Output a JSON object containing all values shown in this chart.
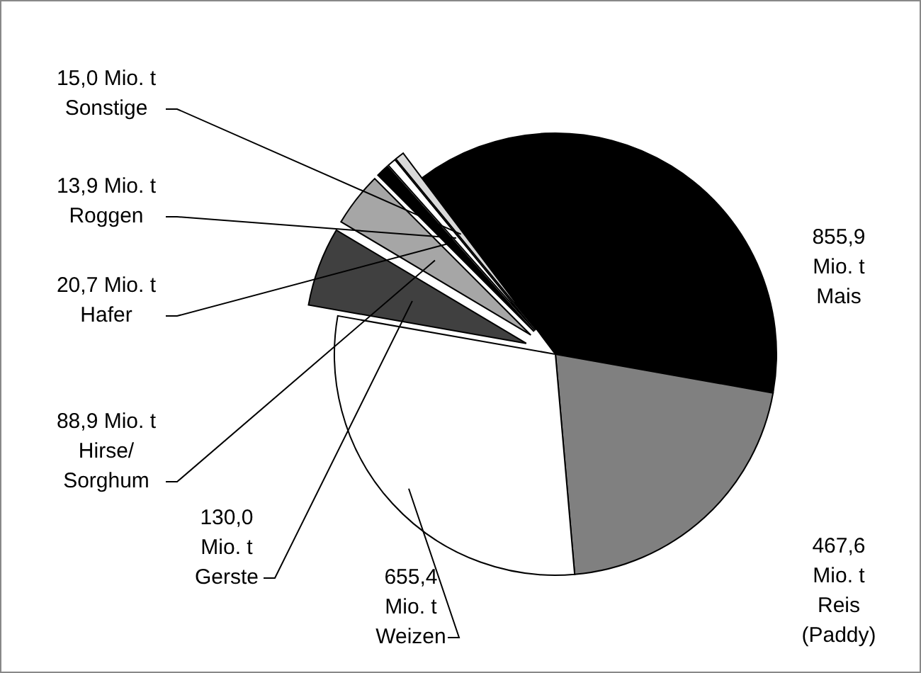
{
  "chart_data": {
    "type": "pie",
    "categories": [
      "Mais",
      "Reis (Paddy)",
      "Weizen",
      "Gerste",
      "Hirse/Sorghum",
      "Hafer",
      "Roggen",
      "Sonstige"
    ],
    "values": [
      855.9,
      467.6,
      655.4,
      130.0,
      88.9,
      20.7,
      13.9,
      15.0
    ],
    "colors": [
      "#000000",
      "#808080",
      "#ffffff",
      "#404040",
      "#a6a6a6",
      "#000000",
      "#ffffff",
      "#d9d9d9"
    ],
    "value_labels": [
      "855,9 Mio. t",
      "467,6 Mio. t",
      "655,4 Mio. t",
      "130,0 Mio. t",
      "88,9 Mio. t",
      "20,7 Mio. t",
      "13,9 Mio. t",
      "15,0 Mio. t"
    ]
  }
}
